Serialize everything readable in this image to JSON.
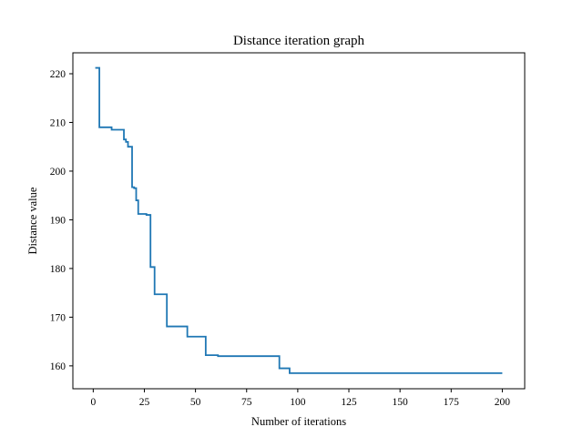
{
  "chart_data": {
    "type": "line",
    "title": "Distance iteration graph",
    "xlabel": "Number of iterations",
    "ylabel": "Distance value",
    "xlim": [
      -9.95,
      210.95
    ],
    "ylim": [
      155.3,
      224.3
    ],
    "xticks": [
      0,
      25,
      50,
      75,
      100,
      125,
      150,
      175,
      200
    ],
    "yticks": [
      160,
      170,
      180,
      190,
      200,
      210,
      220
    ],
    "grid": false,
    "color": "#1f77b4",
    "series": [
      {
        "x": [
          1,
          3,
          3,
          9,
          9,
          15,
          15,
          16,
          16,
          17,
          17,
          19,
          19,
          20,
          20,
          21,
          21,
          22,
          22,
          26,
          26,
          28,
          28,
          30,
          30,
          36,
          36,
          46,
          46,
          55,
          55,
          61,
          61,
          91,
          91,
          96,
          96,
          155,
          155,
          200
        ],
        "y": [
          221.2,
          221.2,
          209.0,
          209.0,
          208.5,
          208.5,
          206.5,
          206.5,
          206.0,
          206.0,
          205.0,
          205.0,
          196.7,
          196.7,
          196.5,
          196.5,
          194.0,
          194.0,
          191.2,
          191.2,
          191.0,
          191.0,
          180.3,
          180.3,
          174.7,
          174.7,
          168.1,
          168.1,
          166.0,
          166.0,
          162.2,
          162.2,
          162.0,
          162.0,
          159.5,
          159.5,
          158.5,
          158.5,
          158.5,
          158.5
        ]
      }
    ]
  }
}
